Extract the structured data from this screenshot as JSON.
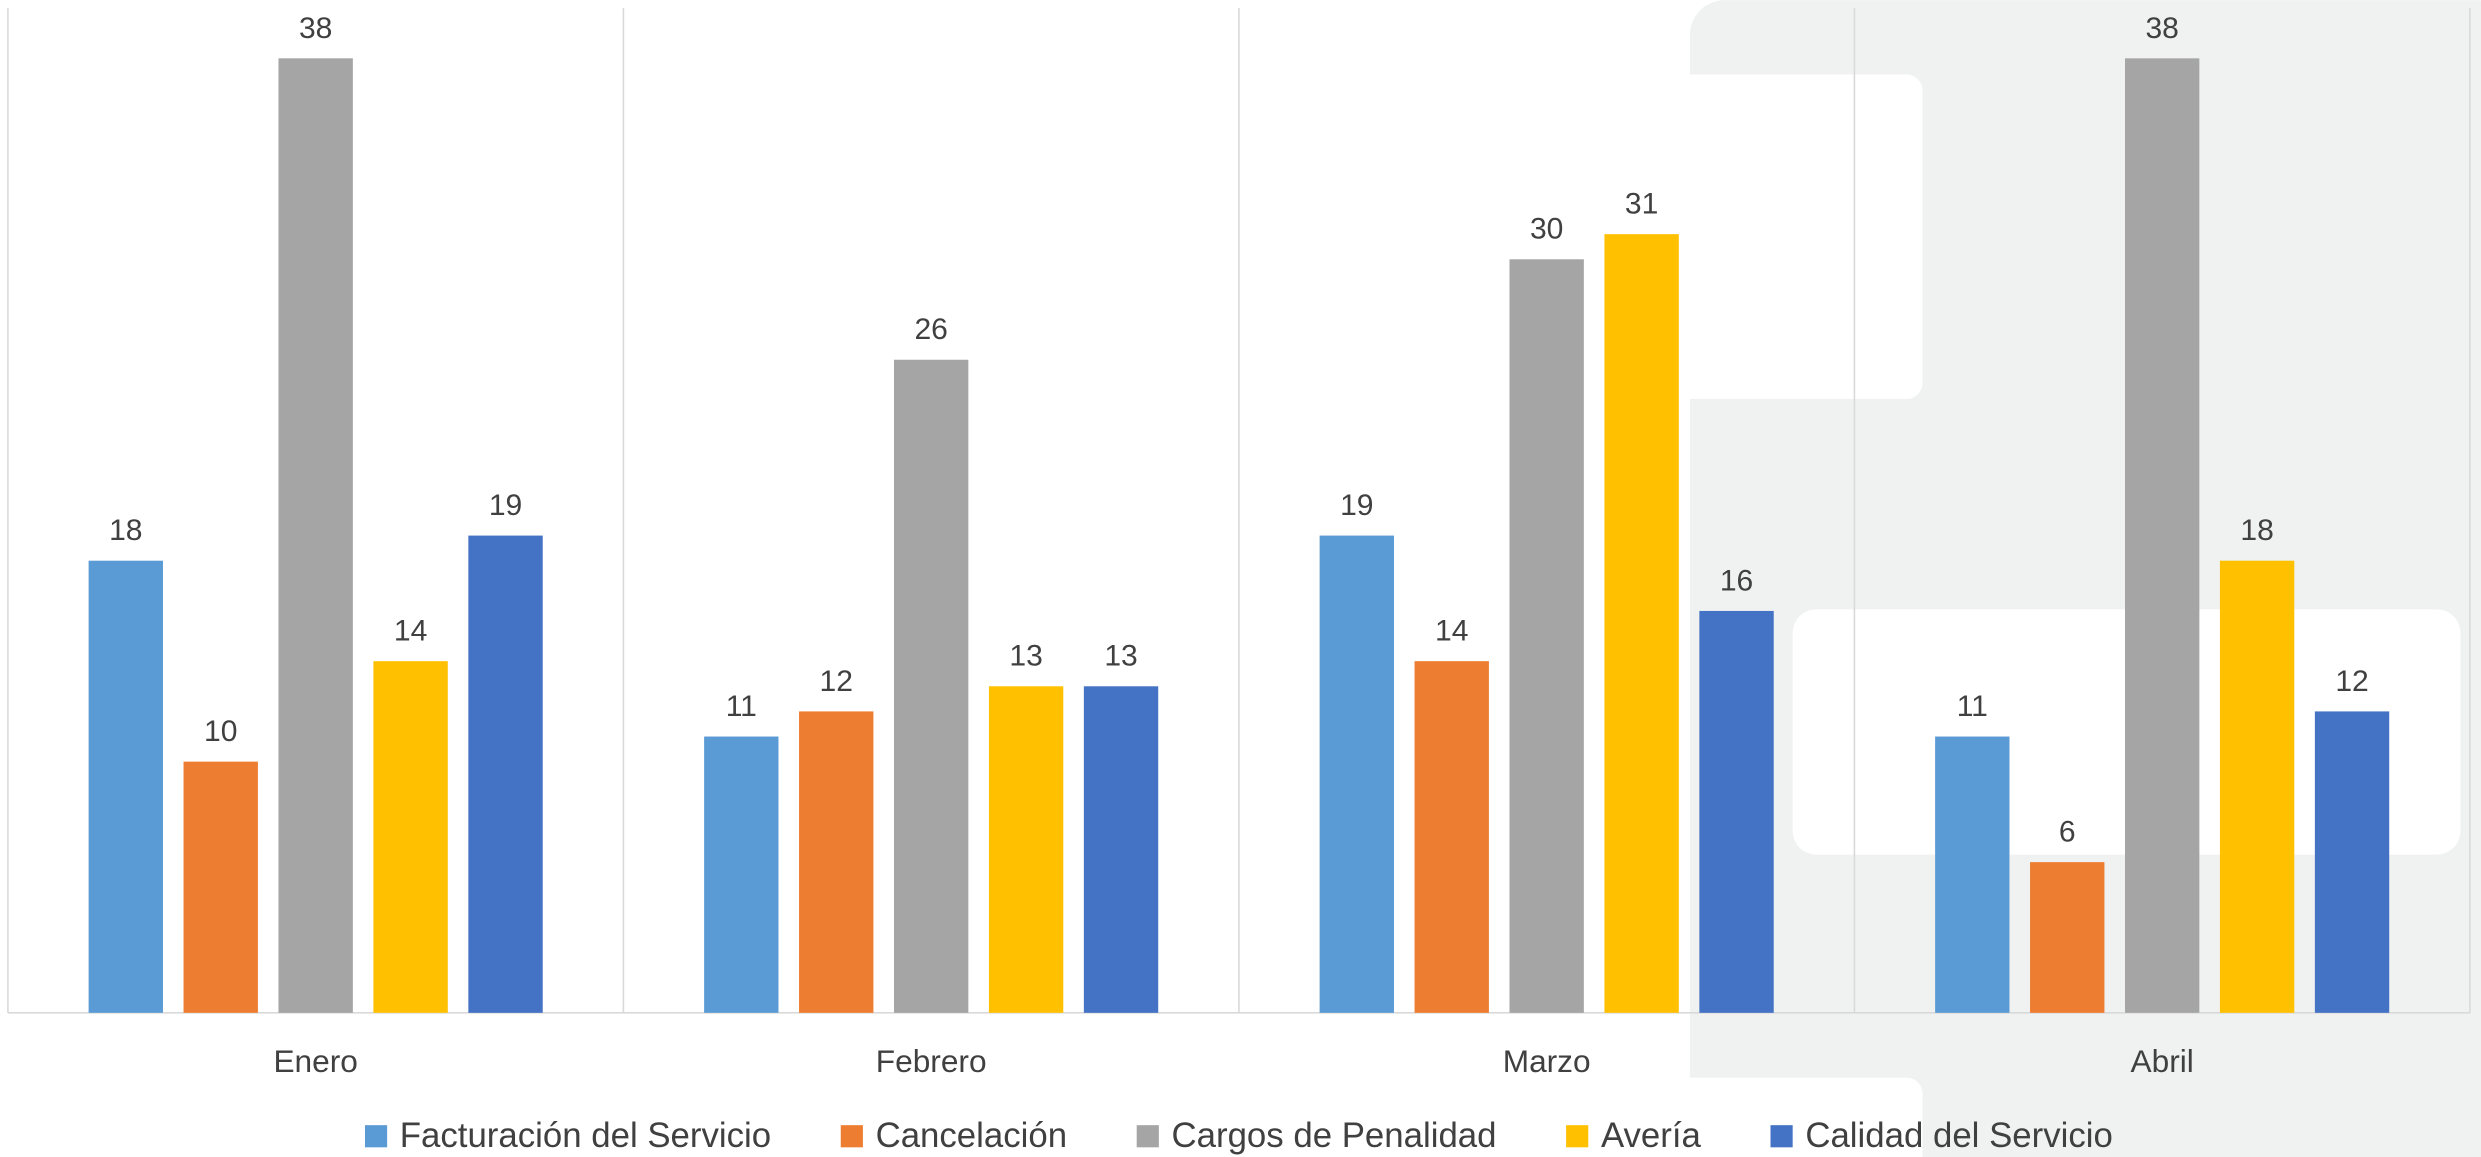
{
  "chart_data": {
    "type": "bar",
    "categories": [
      "Enero",
      "Febrero",
      "Marzo",
      "Abril"
    ],
    "series": [
      {
        "name": "Facturación del Servicio",
        "color": "#5b9bd5",
        "values": [
          18,
          11,
          19,
          11
        ]
      },
      {
        "name": "Cancelación",
        "color": "#ed7d31",
        "values": [
          10,
          12,
          14,
          6
        ]
      },
      {
        "name": "Cargos de Penalidad",
        "color": "#a5a5a5",
        "values": [
          38,
          26,
          30,
          38
        ]
      },
      {
        "name": "Avería",
        "color": "#ffc000",
        "values": [
          14,
          13,
          31,
          18
        ]
      },
      {
        "name": "Calidad del Servicio",
        "color": "#4472c4",
        "values": [
          19,
          13,
          16,
          12
        ]
      }
    ],
    "ylim": [
      0,
      40
    ],
    "legend": "bottom"
  }
}
